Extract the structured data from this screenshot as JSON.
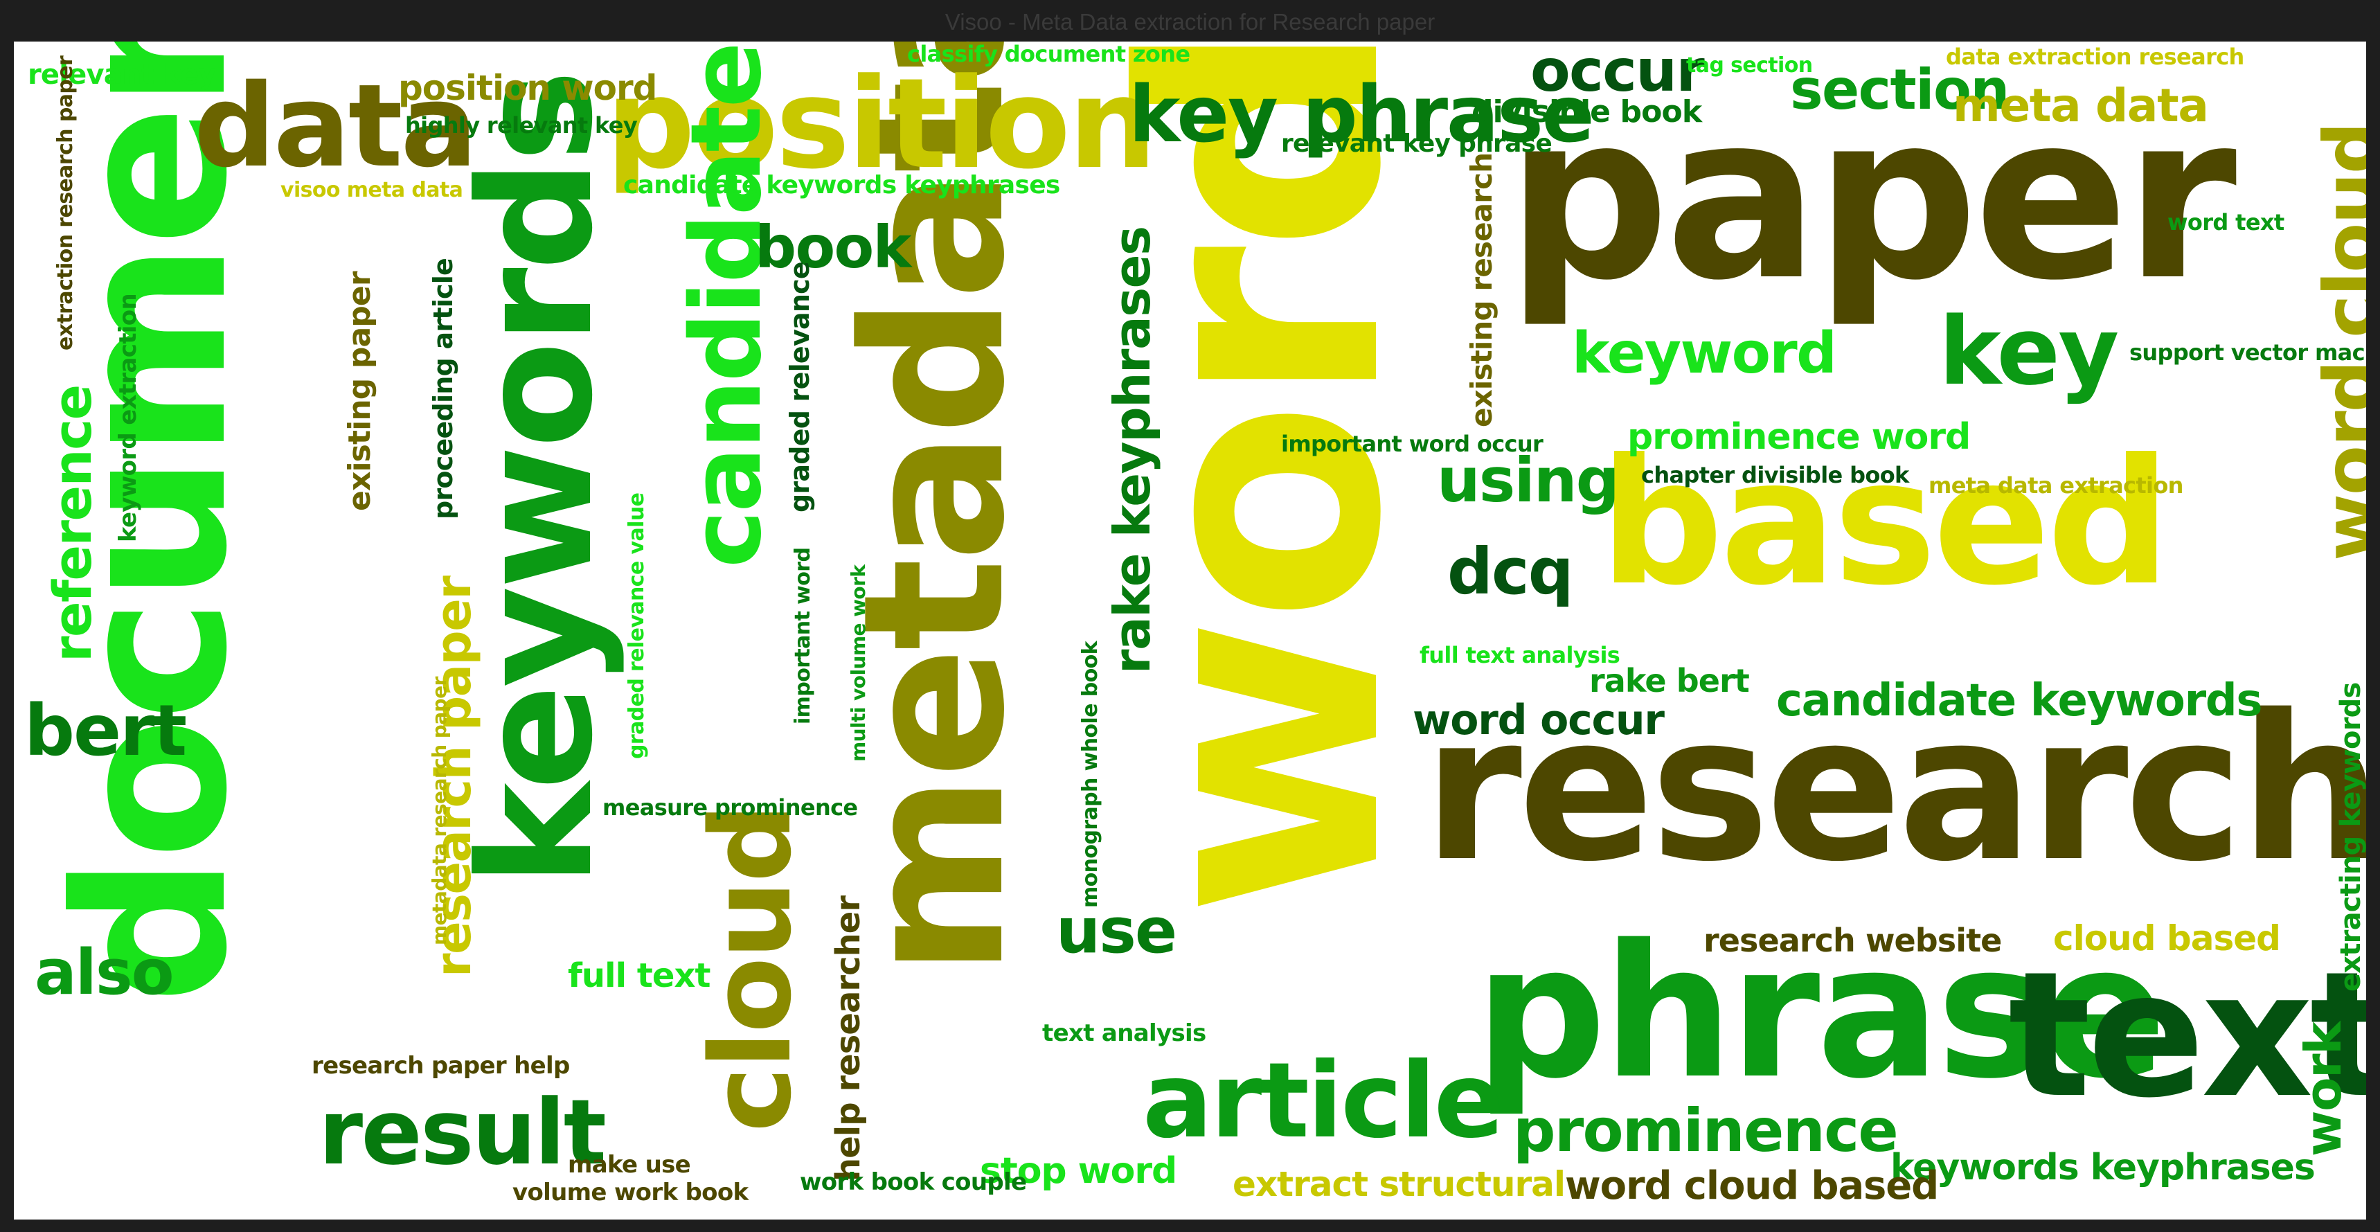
{
  "window": {
    "title": "Visoo - Meta Data extraction for Research paper"
  },
  "colors": {
    "lime": "#19e31b",
    "green": "#0b9a14",
    "mid_green": "#067a0e",
    "dark_green": "#045210",
    "olive": "#8a8a00",
    "dark_olive": "#4d4700",
    "yellow": "#e2e200",
    "khaki": "#b8b800"
  },
  "words": [
    "word",
    "paper",
    "research",
    "phrase",
    "text",
    "based",
    "metadata",
    "document",
    "keywords",
    "position",
    "data",
    "candidate",
    "cloud",
    "word cloud",
    "key phrase",
    "key",
    "article",
    "result",
    "prominence",
    "keyword",
    "section",
    "meta data",
    "occur",
    "rake keyphrases",
    "book",
    "reference",
    "bert",
    "also",
    "use",
    "using",
    "dcq",
    "research paper",
    "candidate keywords",
    "word occur",
    "research website",
    "cloud based",
    "prominence word",
    "keywords keyphrases",
    "word cloud based",
    "extract structural",
    "stop word",
    "full text",
    "help researcher",
    "work",
    "extracting keywords",
    "relevant key",
    "position word",
    "highly relevant key",
    "visoo meta data",
    "candidate keywords keyphrases",
    "classify document zone",
    "tag section",
    "data extraction research",
    "divisible book",
    "relevant key phrase",
    "word text",
    "support vector machine",
    "important word occur",
    "chapter divisible book",
    "meta data extraction",
    "full text analysis",
    "rake bert",
    "extraction research paper",
    "keyword extraction",
    "existing paper",
    "proceeding article",
    "graded relevance",
    "graded relevance value",
    "important word",
    "multi volume work",
    "monograph whole book",
    "metadata research paper",
    "existing research",
    "measure prominence",
    "research paper help",
    "make use",
    "volume work book",
    "work book couple",
    "text analysis"
  ]
}
